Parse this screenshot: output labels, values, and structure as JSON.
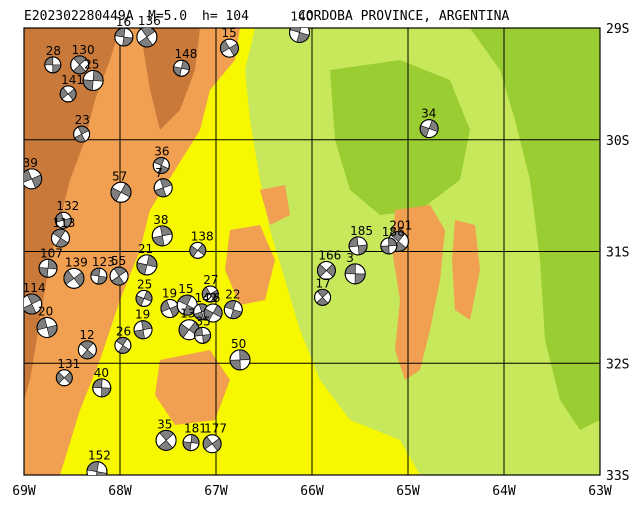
{
  "header": {
    "event_id": "E202302280449A",
    "magnitude": "M=5.0",
    "depth": "h= 104",
    "region": "CORDOBA PROVINCE, ARGENTINA"
  },
  "axes": {
    "lon_labels": [
      "69W",
      "68W",
      "67W",
      "66W",
      "65W",
      "64W",
      "63W"
    ],
    "lat_labels": [
      "29S",
      "30S",
      "31S",
      "32S",
      "33S"
    ],
    "lon_range": [
      -69,
      -63
    ],
    "lat_range": [
      -33,
      -29
    ]
  },
  "colors": {
    "lowland_green": "#9acd32",
    "plains_green": "#c7e85a",
    "transition_yellow": "#f7f700",
    "upland_orange": "#f0a050",
    "mountain_brown": "#c97a3a",
    "grid": "#000000",
    "beachball_fill": "#7f7f7f"
  },
  "events": [
    {
      "label": "28",
      "lon": -68.7,
      "lat": -29.33
    },
    {
      "label": "130",
      "lon": -68.42,
      "lat": -29.33
    },
    {
      "label": "25",
      "lon": -68.28,
      "lat": -29.47
    },
    {
      "label": "141",
      "lon": -68.54,
      "lat": -29.59
    },
    {
      "label": "16",
      "lon": -67.96,
      "lat": -29.08
    },
    {
      "label": "136",
      "lon": -67.72,
      "lat": -29.08
    },
    {
      "label": "148",
      "lon": -67.36,
      "lat": -29.36
    },
    {
      "label": "15",
      "lon": -66.86,
      "lat": -29.18
    },
    {
      "label": "140",
      "lon": -66.13,
      "lat": -29.04
    },
    {
      "label": "23",
      "lon": -68.4,
      "lat": -29.95
    },
    {
      "label": "34",
      "lon": -64.78,
      "lat": -29.9
    },
    {
      "label": "39",
      "lon": -68.92,
      "lat": -30.35
    },
    {
      "label": "36",
      "lon": -67.57,
      "lat": -30.23
    },
    {
      "label": "7",
      "lon": -67.55,
      "lat": -30.43
    },
    {
      "label": "57",
      "lon": -67.99,
      "lat": -30.47
    },
    {
      "label": "132",
      "lon": -68.59,
      "lat": -30.72
    },
    {
      "label": "113",
      "lon": -68.62,
      "lat": -30.88
    },
    {
      "label": "38",
      "lon": -67.56,
      "lat": -30.86
    },
    {
      "label": "138",
      "lon": -67.19,
      "lat": -30.99
    },
    {
      "label": "185",
      "lon": -65.52,
      "lat": -30.95
    },
    {
      "label": "201",
      "lon": -65.1,
      "lat": -30.91
    },
    {
      "label": "186",
      "lon": -65.2,
      "lat": -30.95
    },
    {
      "label": "166",
      "lon": -65.85,
      "lat": -31.17
    },
    {
      "label": "3",
      "lon": -65.55,
      "lat": -31.2
    },
    {
      "label": "17",
      "lon": -65.89,
      "lat": -31.41
    },
    {
      "label": "107",
      "lon": -68.75,
      "lat": -31.15
    },
    {
      "label": "139",
      "lon": -68.48,
      "lat": -31.24
    },
    {
      "label": "123",
      "lon": -68.22,
      "lat": -31.22
    },
    {
      "label": "55",
      "lon": -68.01,
      "lat": -31.22
    },
    {
      "label": "21",
      "lon": -67.72,
      "lat": -31.12
    },
    {
      "label": "27",
      "lon": -67.06,
      "lat": -31.38
    },
    {
      "label": "22",
      "lon": -66.82,
      "lat": -31.52
    },
    {
      "label": "114",
      "lon": -68.92,
      "lat": -31.47
    },
    {
      "label": "25",
      "lon": -67.75,
      "lat": -31.42
    },
    {
      "label": "19",
      "lon": -67.48,
      "lat": -31.51
    },
    {
      "label": "15",
      "lon": -67.3,
      "lat": -31.48
    },
    {
      "label": "142",
      "lon": -67.15,
      "lat": -31.54
    },
    {
      "label": "26",
      "lon": -67.03,
      "lat": -31.55
    },
    {
      "label": "20",
      "lon": -68.76,
      "lat": -31.68
    },
    {
      "label": "26",
      "lon": -67.97,
      "lat": -31.84
    },
    {
      "label": "19",
      "lon": -67.76,
      "lat": -31.7
    },
    {
      "label": "13",
      "lon": -67.28,
      "lat": -31.7
    },
    {
      "label": "35",
      "lon": -67.14,
      "lat": -31.75
    },
    {
      "label": "12",
      "lon": -68.34,
      "lat": -31.88
    },
    {
      "label": "50",
      "lon": -66.75,
      "lat": -31.97
    },
    {
      "label": "131",
      "lon": -68.58,
      "lat": -32.13
    },
    {
      "label": "40",
      "lon": -68.19,
      "lat": -32.22
    },
    {
      "label": "35",
      "lon": -67.52,
      "lat": -32.69
    },
    {
      "label": "181",
      "lon": -67.26,
      "lat": -32.71
    },
    {
      "label": "177",
      "lon": -67.04,
      "lat": -32.72
    },
    {
      "label": "152",
      "lon": -68.24,
      "lat": -32.97
    }
  ]
}
